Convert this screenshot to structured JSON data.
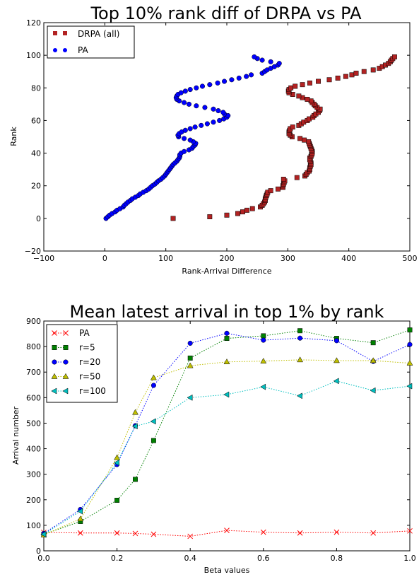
{
  "chart_data": [
    {
      "type": "scatter",
      "title": "Top 10% rank diff of DRPA vs PA",
      "xlabel": "Rank-Arrival Difference",
      "ylabel": "Rank",
      "xlim": [
        -100,
        500
      ],
      "ylim": [
        -20,
        120
      ],
      "xticks": [
        -100,
        0,
        100,
        200,
        300,
        400,
        500
      ],
      "yticks": [
        -20,
        0,
        20,
        40,
        60,
        80,
        100,
        120
      ],
      "xtick_labels": [
        "−100",
        "0",
        "100",
        "200",
        "300",
        "400",
        "500"
      ],
      "ytick_labels": [
        "−20",
        "0",
        "20",
        "40",
        "60",
        "80",
        "100",
        "120"
      ],
      "grid": false,
      "legend_position": "top-left",
      "series": [
        {
          "name": "DRPA (all)",
          "color": "#b22222",
          "marker": "square",
          "points": [
            [
              112,
              0
            ],
            [
              172,
              1
            ],
            [
              200,
              2
            ],
            [
              218,
              3
            ],
            [
              226,
              4
            ],
            [
              233,
              5
            ],
            [
              242,
              6
            ],
            [
              255,
              7
            ],
            [
              258,
              8
            ],
            [
              260,
              9
            ],
            [
              262,
              10
            ],
            [
              263,
              11
            ],
            [
              263,
              12
            ],
            [
              264,
              13
            ],
            [
              265,
              14
            ],
            [
              266,
              15
            ],
            [
              267,
              16
            ],
            [
              272,
              17
            ],
            [
              284,
              18
            ],
            [
              292,
              19
            ],
            [
              292,
              20
            ],
            [
              293,
              21
            ],
            [
              294,
              22
            ],
            [
              295,
              23
            ],
            [
              293,
              24
            ],
            [
              315,
              25
            ],
            [
              328,
              26
            ],
            [
              330,
              27
            ],
            [
              332,
              28
            ],
            [
              335,
              29
            ],
            [
              336,
              30
            ],
            [
              336,
              31
            ],
            [
              337,
              32
            ],
            [
              338,
              33
            ],
            [
              338,
              34
            ],
            [
              337,
              35
            ],
            [
              336,
              36
            ],
            [
              336,
              37
            ],
            [
              338,
              38
            ],
            [
              339,
              39
            ],
            [
              340,
              40
            ],
            [
              340,
              41
            ],
            [
              339,
              42
            ],
            [
              338,
              43
            ],
            [
              337,
              44
            ],
            [
              336,
              45
            ],
            [
              335,
              46
            ],
            [
              334,
              47
            ],
            [
              327,
              48
            ],
            [
              320,
              49
            ],
            [
              307,
              50
            ],
            [
              304,
              51
            ],
            [
              302,
              52
            ],
            [
              302,
              53
            ],
            [
              303,
              54
            ],
            [
              304,
              55
            ],
            [
              308,
              56
            ],
            [
              318,
              57
            ],
            [
              322,
              58
            ],
            [
              326,
              59
            ],
            [
              332,
              60
            ],
            [
              335,
              61
            ],
            [
              341,
              62
            ],
            [
              343,
              63
            ],
            [
              346,
              64
            ],
            [
              350,
              65
            ],
            [
              352,
              66
            ],
            [
              353,
              67
            ],
            [
              348,
              68
            ],
            [
              345,
              69
            ],
            [
              343,
              70
            ],
            [
              340,
              71
            ],
            [
              338,
              72
            ],
            [
              332,
              73
            ],
            [
              324,
              74
            ],
            [
              318,
              75
            ],
            [
              308,
              76
            ],
            [
              302,
              77
            ],
            [
              301,
              78
            ],
            [
              302,
              79
            ],
            [
              305,
              80
            ],
            [
              312,
              81
            ],
            [
              324,
              82
            ],
            [
              336,
              83
            ],
            [
              350,
              84
            ],
            [
              368,
              85
            ],
            [
              382,
              86
            ],
            [
              395,
              87
            ],
            [
              405,
              88
            ],
            [
              412,
              89
            ],
            [
              425,
              90
            ],
            [
              440,
              91
            ],
            [
              450,
              92
            ],
            [
              455,
              93
            ],
            [
              460,
              94
            ],
            [
              465,
              95
            ],
            [
              468,
              96
            ],
            [
              470,
              97
            ],
            [
              472,
              98
            ],
            [
              475,
              99
            ]
          ]
        },
        {
          "name": "PA",
          "color": "#0000ff",
          "marker": "circle",
          "points": [
            [
              2,
              0
            ],
            [
              5,
              1
            ],
            [
              8,
              2
            ],
            [
              12,
              3
            ],
            [
              17,
              4
            ],
            [
              20,
              5
            ],
            [
              25,
              6
            ],
            [
              30,
              7
            ],
            [
              32,
              8
            ],
            [
              35,
              9
            ],
            [
              38,
              10
            ],
            [
              42,
              11
            ],
            [
              45,
              12
            ],
            [
              50,
              13
            ],
            [
              55,
              14
            ],
            [
              58,
              15
            ],
            [
              63,
              16
            ],
            [
              68,
              17
            ],
            [
              72,
              18
            ],
            [
              75,
              19
            ],
            [
              78,
              20
            ],
            [
              82,
              21
            ],
            [
              85,
              22
            ],
            [
              88,
              23
            ],
            [
              92,
              24
            ],
            [
              95,
              25
            ],
            [
              98,
              26
            ],
            [
              100,
              27
            ],
            [
              102,
              28
            ],
            [
              104,
              29
            ],
            [
              106,
              30
            ],
            [
              108,
              31
            ],
            [
              110,
              32
            ],
            [
              112,
              33
            ],
            [
              115,
              34
            ],
            [
              118,
              35
            ],
            [
              120,
              36
            ],
            [
              122,
              37
            ],
            [
              123,
              38
            ],
            [
              123,
              39
            ],
            [
              125,
              40
            ],
            [
              130,
              41
            ],
            [
              138,
              42
            ],
            [
              143,
              43
            ],
            [
              145,
              44
            ],
            [
              148,
              45
            ],
            [
              149,
              46
            ],
            [
              145,
              47
            ],
            [
              140,
              48
            ],
            [
              130,
              49
            ],
            [
              121,
              50
            ],
            [
              120,
              51
            ],
            [
              122,
              52
            ],
            [
              126,
              53
            ],
            [
              132,
              54
            ],
            [
              140,
              55
            ],
            [
              148,
              56
            ],
            [
              158,
              57
            ],
            [
              168,
              58
            ],
            [
              178,
              59
            ],
            [
              188,
              60
            ],
            [
              195,
              61
            ],
            [
              200,
              62
            ],
            [
              202,
              63
            ],
            [
              196,
              64
            ],
            [
              194,
              65
            ],
            [
              186,
              66
            ],
            [
              178,
              67
            ],
            [
              164,
              68
            ],
            [
              150,
              69
            ],
            [
              138,
              70
            ],
            [
              130,
              71
            ],
            [
              122,
              72
            ],
            [
              118,
              73
            ],
            [
              117,
              74
            ],
            [
              118,
              75
            ],
            [
              120,
              76
            ],
            [
              125,
              77
            ],
            [
              132,
              78
            ],
            [
              140,
              79
            ],
            [
              150,
              80
            ],
            [
              160,
              81
            ],
            [
              172,
              82
            ],
            [
              185,
              83
            ],
            [
              196,
              84
            ],
            [
              208,
              85
            ],
            [
              220,
              86
            ],
            [
              232,
              87
            ],
            [
              240,
              88
            ],
            [
              258,
              89
            ],
            [
              262,
              90
            ],
            [
              266,
              91
            ],
            [
              272,
              92
            ],
            [
              278,
              93
            ],
            [
              284,
              94
            ],
            [
              286,
              95
            ],
            [
              272,
              96
            ],
            [
              258,
              97
            ],
            [
              250,
              98
            ],
            [
              245,
              99
            ]
          ]
        }
      ]
    },
    {
      "type": "line",
      "title": "Mean latest arrival in top 1% by rank",
      "xlabel": "Beta values",
      "ylabel": "Arrival number",
      "xlim": [
        0.0,
        1.0
      ],
      "ylim": [
        0,
        900
      ],
      "xticks": [
        0.0,
        0.2,
        0.4,
        0.6,
        0.8,
        1.0
      ],
      "yticks": [
        0,
        100,
        200,
        300,
        400,
        500,
        600,
        700,
        800,
        900
      ],
      "xtick_labels": [
        "0.0",
        "0.2",
        "0.4",
        "0.6",
        "0.8",
        "1.0"
      ],
      "ytick_labels": [
        "0",
        "100",
        "200",
        "300",
        "400",
        "500",
        "600",
        "700",
        "800",
        "900"
      ],
      "grid": false,
      "legend_position": "top-left",
      "x": [
        0.0,
        0.1,
        0.2,
        0.25,
        0.3,
        0.4,
        0.5,
        0.6,
        0.7,
        0.8,
        0.9,
        1.0
      ],
      "series": [
        {
          "name": "PA",
          "color": "#ff0000",
          "marker": "x",
          "values": [
            72,
            70,
            70,
            68,
            65,
            57,
            80,
            73,
            70,
            73,
            70,
            78
          ]
        },
        {
          "name": "r=5",
          "color": "#008000",
          "marker": "square",
          "values": [
            65,
            115,
            198,
            280,
            432,
            755,
            832,
            842,
            862,
            832,
            815,
            865
          ]
        },
        {
          "name": "r=20",
          "color": "#0000ff",
          "marker": "circle",
          "values": [
            68,
            162,
            338,
            490,
            648,
            813,
            852,
            825,
            833,
            823,
            742,
            808
          ]
        },
        {
          "name": "r=50",
          "color": "#bfbf00",
          "marker": "triangle-up",
          "values": [
            62,
            125,
            365,
            542,
            678,
            725,
            740,
            743,
            748,
            745,
            745,
            735
          ]
        },
        {
          "name": "r=100",
          "color": "#00bfbf",
          "marker": "triangle-left",
          "values": [
            65,
            155,
            345,
            488,
            507,
            600,
            612,
            642,
            607,
            665,
            628,
            645
          ]
        }
      ]
    }
  ]
}
